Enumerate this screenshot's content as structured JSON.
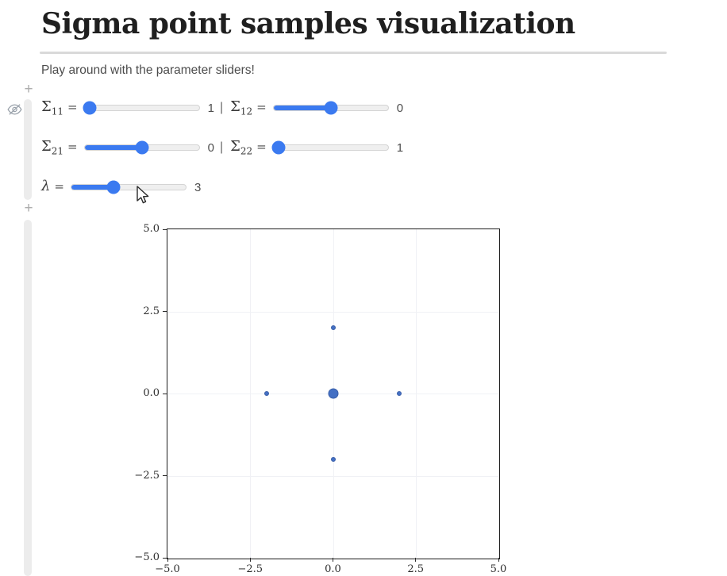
{
  "page": {
    "title": "Sigma point samples visualization",
    "intro": "Play around with the parameter sliders!"
  },
  "gutter": {
    "add_cell_icon": "+",
    "hidden_code_icon": "eye-slash-icon"
  },
  "controls": {
    "equals": "=",
    "separator": "|",
    "sliders": [
      {
        "name": "sigma11",
        "label": "Σ",
        "sub": "11",
        "value": "1",
        "fill_pct": 5
      },
      {
        "name": "sigma12",
        "label": "Σ",
        "sub": "12",
        "value": "0",
        "fill_pct": 50
      },
      {
        "name": "sigma21",
        "label": "Σ",
        "sub": "21",
        "value": "0",
        "fill_pct": 50
      },
      {
        "name": "sigma22",
        "label": "Σ",
        "sub": "22",
        "value": "1",
        "fill_pct": 5
      },
      {
        "name": "lambda",
        "label": "λ",
        "sub": "",
        "value": "3",
        "fill_pct": 37
      }
    ]
  },
  "chart_data": {
    "type": "scatter",
    "title": "",
    "xlabel": "",
    "ylabel": "",
    "xlim": [
      -5,
      5
    ],
    "ylim": [
      -5,
      5
    ],
    "xticks": [
      -5.0,
      -2.5,
      0.0,
      2.5,
      5.0
    ],
    "yticks": [
      -5.0,
      -2.5,
      0.0,
      2.5,
      5.0
    ],
    "grid": true,
    "point_color": "#4470c4",
    "points": [
      {
        "x": 0,
        "y": 0,
        "size": "large"
      },
      {
        "x": -2,
        "y": 0,
        "size": "small"
      },
      {
        "x": 2,
        "y": 0,
        "size": "small"
      },
      {
        "x": 0,
        "y": 2,
        "size": "small"
      },
      {
        "x": 0,
        "y": -2,
        "size": "small"
      }
    ]
  }
}
